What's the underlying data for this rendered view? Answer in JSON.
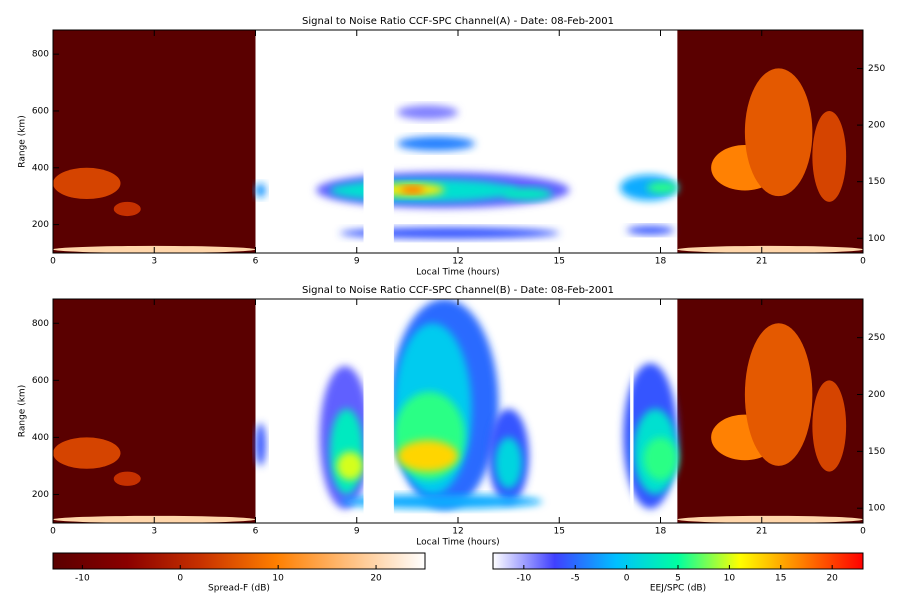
{
  "chart_data": [
    {
      "type": "heatmap",
      "title": "Signal to Noise Ratio CCF-SPC Channel(A) - Date: 08-Feb-2001",
      "xlabel": "Local Time (hours)",
      "ylabel": "Range (km)",
      "xlim": [
        0,
        24
      ],
      "xticks": [
        0,
        3,
        6,
        9,
        12,
        15,
        18,
        21,
        {
          "value": 24,
          "label": "0"
        }
      ],
      "ylim": [
        100,
        885
      ],
      "yticks": [
        200,
        400,
        600,
        800
      ],
      "y2lim": [
        87,
        284
      ],
      "y2ticks": [
        100,
        150,
        200,
        250
      ],
      "spread_f_windows": [
        [
          0,
          6
        ],
        [
          18.5,
          24
        ]
      ],
      "spread_f_background_db": -13,
      "spread_f_echoes": [
        {
          "x": [
            0,
            6
          ],
          "y": [
            100,
            125
          ],
          "db": 20
        },
        {
          "x": [
            18.5,
            24
          ],
          "y": [
            100,
            125
          ],
          "db": 20
        },
        {
          "x": [
            0,
            2
          ],
          "y": [
            290,
            400
          ],
          "db": 4
        },
        {
          "x": [
            1.8,
            2.6
          ],
          "y": [
            230,
            280
          ],
          "db": 2
        },
        {
          "x": [
            19.5,
            21.5
          ],
          "y": [
            320,
            480
          ],
          "db": 10
        },
        {
          "x": [
            20.5,
            22.5
          ],
          "y": [
            300,
            750
          ],
          "db": 6
        },
        {
          "x": [
            22.5,
            23.5
          ],
          "y": [
            280,
            600
          ],
          "db": 4
        }
      ],
      "patches": [
        {
          "x": [
            6,
            6.3
          ],
          "y": [
            295,
            345
          ],
          "db": -3
        },
        {
          "x": [
            7.8,
            15.3
          ],
          "y": [
            258,
            385
          ],
          "db": -8
        },
        {
          "x": [
            8.2,
            13.8
          ],
          "y": [
            280,
            360
          ],
          "db": 2
        },
        {
          "x": [
            9.6,
            11.6
          ],
          "y": [
            300,
            345
          ],
          "db": 12
        },
        {
          "x": [
            10.3,
            11
          ],
          "y": [
            310,
            335
          ],
          "db": 18
        },
        {
          "x": [
            13.3,
            14.8
          ],
          "y": [
            285,
            330
          ],
          "db": 3
        },
        {
          "x": [
            10.2,
            12.5
          ],
          "y": [
            460,
            510
          ],
          "db": -4
        },
        {
          "x": [
            10.2,
            12
          ],
          "y": [
            570,
            620
          ],
          "db": -9
        },
        {
          "x": [
            8.5,
            15
          ],
          "y": [
            150,
            190
          ],
          "db": -6
        },
        {
          "x": [
            16.8,
            18.5
          ],
          "y": [
            285,
            375
          ],
          "db": -2
        },
        {
          "x": [
            17.6,
            18.5
          ],
          "y": [
            310,
            350
          ],
          "db": 6
        },
        {
          "x": [
            17,
            18.4
          ],
          "y": [
            165,
            195
          ],
          "db": -6
        }
      ],
      "data_gaps": [
        [
          9.2,
          10.1
        ]
      ]
    },
    {
      "type": "heatmap",
      "title": "Signal to Noise Ratio CCF-SPC Channel(B) - Date: 08-Feb-2001",
      "xlabel": "Local Time (hours)",
      "ylabel": "Range (km)",
      "xlim": [
        0,
        24
      ],
      "xticks": [
        0,
        3,
        6,
        9,
        12,
        15,
        18,
        21,
        {
          "value": 24,
          "label": "0"
        }
      ],
      "ylim": [
        100,
        885
      ],
      "yticks": [
        200,
        400,
        600,
        800
      ],
      "y2lim": [
        87,
        284
      ],
      "y2ticks": [
        100,
        150,
        200,
        250
      ],
      "spread_f_windows": [
        [
          0,
          6
        ],
        [
          18.5,
          24
        ]
      ],
      "spread_f_background_db": -13,
      "spread_f_echoes": [
        {
          "x": [
            0,
            6
          ],
          "y": [
            100,
            125
          ],
          "db": 20
        },
        {
          "x": [
            18.5,
            24
          ],
          "y": [
            100,
            125
          ],
          "db": 20
        },
        {
          "x": [
            0,
            2
          ],
          "y": [
            290,
            400
          ],
          "db": 4
        },
        {
          "x": [
            1.8,
            2.6
          ],
          "y": [
            230,
            280
          ],
          "db": 2
        },
        {
          "x": [
            19.5,
            21.5
          ],
          "y": [
            320,
            480
          ],
          "db": 10
        },
        {
          "x": [
            20.5,
            22.5
          ],
          "y": [
            300,
            800
          ],
          "db": 6
        },
        {
          "x": [
            22.5,
            23.5
          ],
          "y": [
            280,
            600
          ],
          "db": 4
        }
      ],
      "patches": [
        {
          "x": [
            6,
            6.3
          ],
          "y": [
            300,
            450
          ],
          "db": -6
        },
        {
          "x": [
            7.9,
            9.4
          ],
          "y": [
            150,
            650
          ],
          "db": -8
        },
        {
          "x": [
            8.2,
            9.2
          ],
          "y": [
            200,
            500
          ],
          "db": 3
        },
        {
          "x": [
            8.4,
            9.2
          ],
          "y": [
            250,
            350
          ],
          "db": 10
        },
        {
          "x": [
            10,
            13.2
          ],
          "y": [
            150,
            885
          ],
          "db": -5
        },
        {
          "x": [
            10.1,
            12.4
          ],
          "y": [
            200,
            800
          ],
          "db": 0
        },
        {
          "x": [
            10.1,
            12.2
          ],
          "y": [
            250,
            560
          ],
          "db": 6
        },
        {
          "x": [
            10.2,
            12
          ],
          "y": [
            280,
            390
          ],
          "db": 13
        },
        {
          "x": [
            12.9,
            14.1
          ],
          "y": [
            170,
            500
          ],
          "db": -6
        },
        {
          "x": [
            13.1,
            13.9
          ],
          "y": [
            220,
            400
          ],
          "db": 1
        },
        {
          "x": [
            8.5,
            14.5
          ],
          "y": [
            150,
            200
          ],
          "db": -2
        },
        {
          "x": [
            16.9,
            18.5
          ],
          "y": [
            150,
            660
          ],
          "db": -6
        },
        {
          "x": [
            17.2,
            18.5
          ],
          "y": [
            200,
            500
          ],
          "db": 2
        },
        {
          "x": [
            17.5,
            18.5
          ],
          "y": [
            250,
            400
          ],
          "db": 6
        }
      ],
      "data_gaps": [
        [
          9.2,
          10.1
        ],
        [
          17.1,
          17.2
        ]
      ]
    }
  ],
  "colorbars": [
    {
      "label": "Spread-F (dB)",
      "lim": [
        -13,
        25
      ],
      "ticks": [
        -10,
        0,
        10,
        20
      ],
      "colors": [
        "#5a0000",
        "#8b0000",
        "#c83200",
        "#ff7f00",
        "#ffc080",
        "#ffffff"
      ]
    },
    {
      "label": "EEJ/SPC (dB)",
      "lim": [
        -13,
        23
      ],
      "ticks": [
        -10,
        -5,
        0,
        5,
        10,
        15,
        20
      ],
      "colors": [
        "#ffffff",
        "#4040ff",
        "#00c0ff",
        "#00ffa0",
        "#ffff00",
        "#ff8000",
        "#ff0000"
      ]
    }
  ]
}
